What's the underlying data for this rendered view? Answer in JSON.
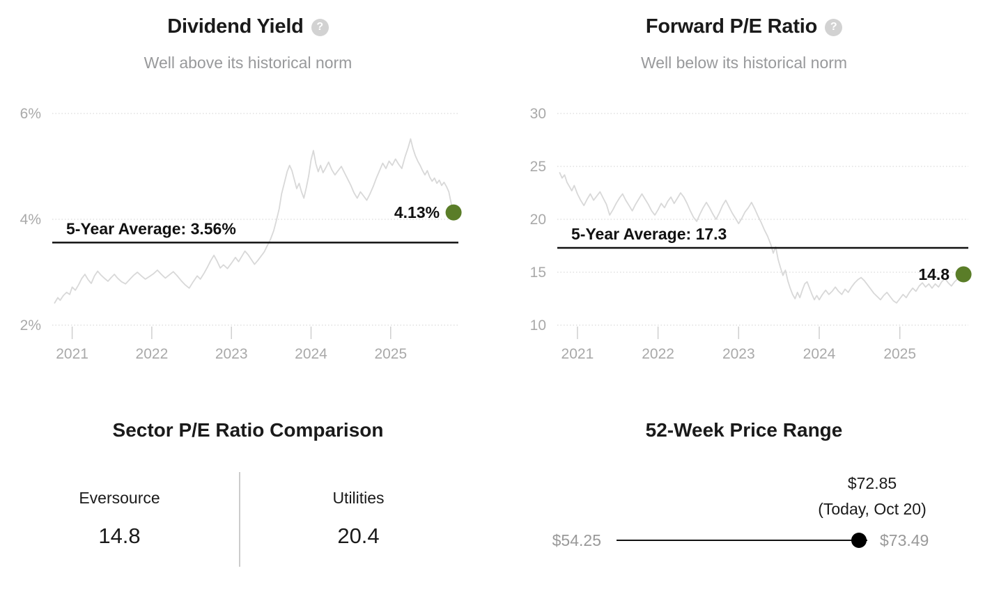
{
  "colors": {
    "accent_green": "#5a7d28",
    "title_text": "#1a1a1a",
    "subtitle_text": "#98999b",
    "axis_text": "#a9a9a9",
    "series_line": "#d8d8d8",
    "average_line": "#111111",
    "range_dot": "#000000",
    "muted_text": "#999999"
  },
  "icons": {
    "help": "?"
  },
  "chart_data": [
    {
      "type": "line",
      "title": "Dividend Yield",
      "subtitle": "Well above its historical norm",
      "ylim": [
        2,
        6
      ],
      "xlim": [
        2020.75,
        2025.85
      ],
      "grid": "dotted-horizontal",
      "y_ticks": [
        {
          "label": "6%",
          "value": 6
        },
        {
          "label": "4%",
          "value": 4
        },
        {
          "label": "2%",
          "value": 2
        }
      ],
      "x_ticks": [
        2021,
        2022,
        2023,
        2024,
        2025
      ],
      "average": {
        "value": 3.56,
        "label": "5-Year Average: 3.56%"
      },
      "current": {
        "value": 4.13,
        "label": "4.13%"
      },
      "series": [
        [
          2020.78,
          2.42
        ],
        [
          2020.82,
          2.52
        ],
        [
          2020.85,
          2.47
        ],
        [
          2020.89,
          2.56
        ],
        [
          2020.93,
          2.62
        ],
        [
          2020.97,
          2.58
        ],
        [
          2021.0,
          2.72
        ],
        [
          2021.04,
          2.66
        ],
        [
          2021.08,
          2.76
        ],
        [
          2021.12,
          2.88
        ],
        [
          2021.16,
          2.96
        ],
        [
          2021.2,
          2.86
        ],
        [
          2021.24,
          2.79
        ],
        [
          2021.28,
          2.93
        ],
        [
          2021.32,
          3.02
        ],
        [
          2021.36,
          2.95
        ],
        [
          2021.41,
          2.88
        ],
        [
          2021.45,
          2.83
        ],
        [
          2021.49,
          2.9
        ],
        [
          2021.53,
          2.96
        ],
        [
          2021.57,
          2.89
        ],
        [
          2021.62,
          2.82
        ],
        [
          2021.67,
          2.78
        ],
        [
          2021.72,
          2.86
        ],
        [
          2021.77,
          2.94
        ],
        [
          2021.82,
          3.0
        ],
        [
          2021.87,
          2.93
        ],
        [
          2021.92,
          2.87
        ],
        [
          2021.97,
          2.92
        ],
        [
          2022.02,
          2.97
        ],
        [
          2022.07,
          3.04
        ],
        [
          2022.12,
          2.96
        ],
        [
          2022.17,
          2.89
        ],
        [
          2022.22,
          2.95
        ],
        [
          2022.27,
          3.01
        ],
        [
          2022.32,
          2.93
        ],
        [
          2022.37,
          2.84
        ],
        [
          2022.42,
          2.76
        ],
        [
          2022.47,
          2.7
        ],
        [
          2022.52,
          2.82
        ],
        [
          2022.57,
          2.93
        ],
        [
          2022.61,
          2.87
        ],
        [
          2022.66,
          2.99
        ],
        [
          2022.7,
          3.1
        ],
        [
          2022.74,
          3.22
        ],
        [
          2022.78,
          3.32
        ],
        [
          2022.82,
          3.21
        ],
        [
          2022.86,
          3.08
        ],
        [
          2022.9,
          3.14
        ],
        [
          2022.95,
          3.07
        ],
        [
          2023.0,
          3.17
        ],
        [
          2023.05,
          3.28
        ],
        [
          2023.09,
          3.2
        ],
        [
          2023.13,
          3.3
        ],
        [
          2023.17,
          3.4
        ],
        [
          2023.21,
          3.33
        ],
        [
          2023.25,
          3.24
        ],
        [
          2023.29,
          3.15
        ],
        [
          2023.33,
          3.22
        ],
        [
          2023.37,
          3.3
        ],
        [
          2023.41,
          3.38
        ],
        [
          2023.45,
          3.5
        ],
        [
          2023.49,
          3.62
        ],
        [
          2023.53,
          3.78
        ],
        [
          2023.56,
          3.95
        ],
        [
          2023.6,
          4.2
        ],
        [
          2023.63,
          4.48
        ],
        [
          2023.67,
          4.72
        ],
        [
          2023.7,
          4.9
        ],
        [
          2023.73,
          5.02
        ],
        [
          2023.76,
          4.92
        ],
        [
          2023.79,
          4.75
        ],
        [
          2023.82,
          4.58
        ],
        [
          2023.85,
          4.68
        ],
        [
          2023.88,
          4.52
        ],
        [
          2023.91,
          4.4
        ],
        [
          2023.94,
          4.6
        ],
        [
          2023.97,
          4.82
        ],
        [
          2024.0,
          5.12
        ],
        [
          2024.03,
          5.3
        ],
        [
          2024.06,
          5.05
        ],
        [
          2024.09,
          4.9
        ],
        [
          2024.12,
          5.02
        ],
        [
          2024.15,
          4.88
        ],
        [
          2024.18,
          4.96
        ],
        [
          2024.22,
          5.08
        ],
        [
          2024.26,
          4.94
        ],
        [
          2024.3,
          4.84
        ],
        [
          2024.34,
          4.92
        ],
        [
          2024.38,
          5.0
        ],
        [
          2024.42,
          4.88
        ],
        [
          2024.46,
          4.76
        ],
        [
          2024.5,
          4.64
        ],
        [
          2024.54,
          4.5
        ],
        [
          2024.58,
          4.4
        ],
        [
          2024.62,
          4.52
        ],
        [
          2024.66,
          4.44
        ],
        [
          2024.7,
          4.36
        ],
        [
          2024.74,
          4.48
        ],
        [
          2024.78,
          4.62
        ],
        [
          2024.82,
          4.78
        ],
        [
          2024.86,
          4.92
        ],
        [
          2024.9,
          5.06
        ],
        [
          2024.94,
          4.96
        ],
        [
          2024.98,
          5.1
        ],
        [
          2025.02,
          5.02
        ],
        [
          2025.06,
          5.14
        ],
        [
          2025.1,
          5.04
        ],
        [
          2025.14,
          4.96
        ],
        [
          2025.18,
          5.18
        ],
        [
          2025.22,
          5.36
        ],
        [
          2025.25,
          5.52
        ],
        [
          2025.28,
          5.34
        ],
        [
          2025.31,
          5.2
        ],
        [
          2025.34,
          5.1
        ],
        [
          2025.37,
          5.02
        ],
        [
          2025.4,
          4.92
        ],
        [
          2025.43,
          4.84
        ],
        [
          2025.46,
          4.92
        ],
        [
          2025.49,
          4.8
        ],
        [
          2025.52,
          4.72
        ],
        [
          2025.55,
          4.78
        ],
        [
          2025.58,
          4.68
        ],
        [
          2025.61,
          4.74
        ],
        [
          2025.64,
          4.64
        ],
        [
          2025.67,
          4.7
        ],
        [
          2025.7,
          4.62
        ],
        [
          2025.73,
          4.52
        ],
        [
          2025.76,
          4.3
        ],
        [
          2025.79,
          4.13
        ]
      ]
    },
    {
      "type": "line",
      "title": "Forward P/E Ratio",
      "subtitle": "Well below its historical norm",
      "ylim": [
        10,
        30
      ],
      "xlim": [
        2020.75,
        2025.85
      ],
      "grid": "dotted-horizontal",
      "y_ticks": [
        {
          "label": "30",
          "value": 30
        },
        {
          "label": "25",
          "value": 25
        },
        {
          "label": "20",
          "value": 20
        },
        {
          "label": "15",
          "value": 15
        },
        {
          "label": "10",
          "value": 10
        }
      ],
      "x_ticks": [
        2021,
        2022,
        2023,
        2024,
        2025
      ],
      "average": {
        "value": 17.3,
        "label": "5-Year Average: 17.3"
      },
      "current": {
        "value": 14.8,
        "label": "14.8"
      },
      "series": [
        [
          2020.78,
          24.4
        ],
        [
          2020.81,
          23.9
        ],
        [
          2020.84,
          24.2
        ],
        [
          2020.87,
          23.5
        ],
        [
          2020.9,
          23.1
        ],
        [
          2020.93,
          22.7
        ],
        [
          2020.96,
          23.2
        ],
        [
          2021.0,
          22.4
        ],
        [
          2021.04,
          21.8
        ],
        [
          2021.08,
          21.3
        ],
        [
          2021.12,
          21.9
        ],
        [
          2021.16,
          22.4
        ],
        [
          2021.2,
          21.8
        ],
        [
          2021.24,
          22.2
        ],
        [
          2021.28,
          22.6
        ],
        [
          2021.32,
          22.0
        ],
        [
          2021.36,
          21.4
        ],
        [
          2021.4,
          20.4
        ],
        [
          2021.44,
          20.9
        ],
        [
          2021.48,
          21.5
        ],
        [
          2021.52,
          22.0
        ],
        [
          2021.56,
          22.4
        ],
        [
          2021.6,
          21.8
        ],
        [
          2021.64,
          21.3
        ],
        [
          2021.68,
          20.8
        ],
        [
          2021.72,
          21.4
        ],
        [
          2021.76,
          21.9
        ],
        [
          2021.8,
          22.4
        ],
        [
          2021.84,
          21.9
        ],
        [
          2021.88,
          21.4
        ],
        [
          2021.92,
          20.8
        ],
        [
          2021.96,
          20.4
        ],
        [
          2022.0,
          20.9
        ],
        [
          2022.04,
          21.5
        ],
        [
          2022.08,
          21.1
        ],
        [
          2022.12,
          21.7
        ],
        [
          2022.16,
          22.1
        ],
        [
          2022.2,
          21.5
        ],
        [
          2022.24,
          22.0
        ],
        [
          2022.28,
          22.5
        ],
        [
          2022.32,
          22.1
        ],
        [
          2022.36,
          21.5
        ],
        [
          2022.4,
          20.8
        ],
        [
          2022.44,
          20.2
        ],
        [
          2022.48,
          19.8
        ],
        [
          2022.52,
          20.5
        ],
        [
          2022.56,
          21.1
        ],
        [
          2022.6,
          21.6
        ],
        [
          2022.64,
          21.1
        ],
        [
          2022.68,
          20.5
        ],
        [
          2022.72,
          20.0
        ],
        [
          2022.76,
          20.6
        ],
        [
          2022.8,
          21.3
        ],
        [
          2022.84,
          21.8
        ],
        [
          2022.88,
          21.2
        ],
        [
          2022.92,
          20.6
        ],
        [
          2022.96,
          20.1
        ],
        [
          2023.0,
          19.6
        ],
        [
          2023.04,
          20.1
        ],
        [
          2023.08,
          20.7
        ],
        [
          2023.12,
          21.1
        ],
        [
          2023.16,
          21.6
        ],
        [
          2023.2,
          21.0
        ],
        [
          2023.24,
          20.3
        ],
        [
          2023.28,
          19.7
        ],
        [
          2023.32,
          19.0
        ],
        [
          2023.36,
          18.4
        ],
        [
          2023.4,
          17.6
        ],
        [
          2023.43,
          16.8
        ],
        [
          2023.46,
          17.4
        ],
        [
          2023.49,
          16.2
        ],
        [
          2023.52,
          15.4
        ],
        [
          2023.55,
          14.7
        ],
        [
          2023.58,
          15.2
        ],
        [
          2023.61,
          14.2
        ],
        [
          2023.64,
          13.5
        ],
        [
          2023.67,
          12.9
        ],
        [
          2023.7,
          12.5
        ],
        [
          2023.73,
          13.1
        ],
        [
          2023.76,
          12.6
        ],
        [
          2023.79,
          13.3
        ],
        [
          2023.82,
          13.9
        ],
        [
          2023.85,
          14.1
        ],
        [
          2023.88,
          13.5
        ],
        [
          2023.91,
          12.9
        ],
        [
          2023.94,
          12.4
        ],
        [
          2023.97,
          12.8
        ],
        [
          2024.0,
          12.4
        ],
        [
          2024.04,
          12.9
        ],
        [
          2024.08,
          13.3
        ],
        [
          2024.12,
          12.9
        ],
        [
          2024.16,
          13.2
        ],
        [
          2024.2,
          13.6
        ],
        [
          2024.24,
          13.2
        ],
        [
          2024.28,
          12.9
        ],
        [
          2024.32,
          13.4
        ],
        [
          2024.36,
          13.1
        ],
        [
          2024.4,
          13.6
        ],
        [
          2024.44,
          14.0
        ],
        [
          2024.48,
          14.3
        ],
        [
          2024.52,
          14.5
        ],
        [
          2024.56,
          14.2
        ],
        [
          2024.6,
          13.8
        ],
        [
          2024.64,
          13.4
        ],
        [
          2024.68,
          13.0
        ],
        [
          2024.72,
          12.7
        ],
        [
          2024.76,
          12.4
        ],
        [
          2024.8,
          12.8
        ],
        [
          2024.84,
          13.1
        ],
        [
          2024.88,
          12.7
        ],
        [
          2024.92,
          12.3
        ],
        [
          2024.96,
          12.1
        ],
        [
          2025.0,
          12.5
        ],
        [
          2025.04,
          12.9
        ],
        [
          2025.08,
          12.6
        ],
        [
          2025.12,
          13.1
        ],
        [
          2025.16,
          13.5
        ],
        [
          2025.2,
          13.2
        ],
        [
          2025.24,
          13.7
        ],
        [
          2025.28,
          14.0
        ],
        [
          2025.32,
          13.6
        ],
        [
          2025.36,
          13.9
        ],
        [
          2025.4,
          13.5
        ],
        [
          2025.44,
          13.9
        ],
        [
          2025.48,
          13.6
        ],
        [
          2025.52,
          14.1
        ],
        [
          2025.56,
          14.4
        ],
        [
          2025.6,
          14.0
        ],
        [
          2025.64,
          13.7
        ],
        [
          2025.68,
          14.1
        ],
        [
          2025.72,
          14.4
        ],
        [
          2025.76,
          14.6
        ],
        [
          2025.79,
          14.8
        ]
      ]
    },
    {
      "type": "table",
      "title": "Sector P/E Ratio Comparison",
      "items": [
        {
          "label": "Eversource",
          "value": "14.8"
        },
        {
          "label": "Utilities",
          "value": "20.4"
        }
      ]
    },
    {
      "type": "range",
      "title": "52-Week Price Range",
      "low": 54.25,
      "high": 73.49,
      "current": 72.85,
      "low_label": "$54.25",
      "high_label": "$73.49",
      "current_label": "$72.85",
      "current_sublabel": "(Today, Oct 20)"
    }
  ]
}
